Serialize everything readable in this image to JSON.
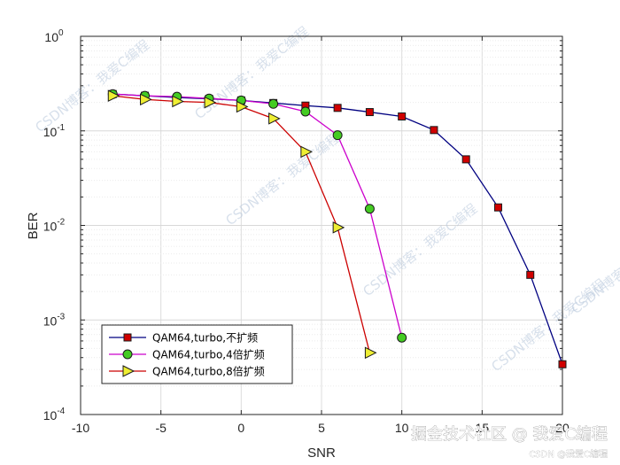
{
  "chart_data": {
    "type": "line",
    "xlabel": "SNR",
    "ylabel": "BER",
    "xlim": [
      -10,
      20
    ],
    "ylim": [
      0.0001,
      1
    ],
    "yscale": "log",
    "grid": true,
    "legend_position": "bottom-left",
    "x_ticks": [
      "-10",
      "-5",
      "0",
      "5",
      "10",
      "15",
      "20"
    ],
    "y_ticks": [
      {
        "base": "10",
        "exp": "0"
      },
      {
        "base": "10",
        "exp": "-1"
      },
      {
        "base": "10",
        "exp": "-2"
      },
      {
        "base": "10",
        "exp": "-3"
      },
      {
        "base": "10",
        "exp": "-4"
      }
    ],
    "series": [
      {
        "name": "QAM64,turbo,不扩频",
        "color": "#000080",
        "marker": "square",
        "marker_color": "#d00000",
        "x": [
          -8,
          -6,
          -4,
          -2,
          0,
          2,
          4,
          6,
          8,
          10,
          12,
          14,
          16,
          18,
          20
        ],
        "y": [
          0.245,
          0.235,
          0.225,
          0.218,
          0.21,
          0.197,
          0.185,
          0.175,
          0.158,
          0.142,
          0.102,
          0.05,
          0.0155,
          0.003,
          0.00034
        ]
      },
      {
        "name": "QAM64,turbo,4倍扩频",
        "color": "#cc00cc",
        "marker": "circle",
        "marker_color": "#44cc22",
        "x": [
          -8,
          -6,
          -4,
          -2,
          0,
          2,
          4,
          6,
          8,
          10
        ],
        "y": [
          0.245,
          0.235,
          0.23,
          0.22,
          0.21,
          0.193,
          0.16,
          0.09,
          0.015,
          0.00065
        ]
      },
      {
        "name": "QAM64,turbo,8倍扩频",
        "color": "#cc0000",
        "marker": "triangle-right",
        "marker_color": "#eeee33",
        "x": [
          -8,
          -6,
          -4,
          -2,
          0,
          2,
          4,
          6,
          8
        ],
        "y": [
          0.235,
          0.215,
          0.205,
          0.2,
          0.18,
          0.135,
          0.06,
          0.0095,
          0.00045
        ]
      }
    ]
  },
  "watermark": {
    "text": "CSDN博客：我爱C编程",
    "color": "#b8c8dc"
  },
  "footer": {
    "main": "掘金技术社区 @ 我爱C编程",
    "sub": "CSDN @我爱C编程"
  }
}
